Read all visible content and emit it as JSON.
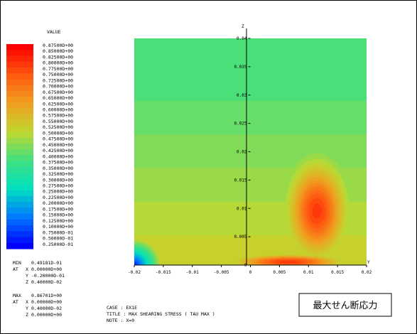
{
  "chart_data": {
    "type": "heatmap",
    "title": "MAX SHEARING STRESS ( TAU MAX )",
    "xlabel": "Y",
    "ylabel": "Z",
    "xlim": [
      -0.02,
      0.02
    ],
    "ylim": [
      0,
      0.04
    ],
    "x_ticks": [
      "-0.02",
      "-0.015",
      "-0.01",
      "-0.005",
      "0",
      "0.005",
      "0.01",
      "0.015",
      "0.02"
    ],
    "y_ticks": [
      "0",
      "0.005",
      "0.01",
      "0.015",
      "0.02",
      "0.025",
      "0.03",
      "0.035",
      "0.04"
    ],
    "colorbar": {
      "title": "VALUE",
      "labels": [
        "0.87500D+00",
        "0.85000D+00",
        "0.82500D+00",
        "0.80000D+00",
        "0.77500D+00",
        "0.75000D+00",
        "0.72500D+00",
        "0.70000D+00",
        "0.67500D+00",
        "0.65000D+00",
        "0.62500D+00",
        "0.60000D+00",
        "0.57500D+00",
        "0.55000D+00",
        "0.52500D+00",
        "0.50000D+00",
        "0.47500D+00",
        "0.45000D+00",
        "0.42500D+00",
        "0.40000D+00",
        "0.37500D+00",
        "0.35000D+00",
        "0.32500D+00",
        "0.30000D+00",
        "0.27500D+00",
        "0.25000D+00",
        "0.22500D+00",
        "0.20000D+00",
        "0.17500D+00",
        "0.15000D+00",
        "0.12500D+00",
        "0.10000D+00",
        "0.75000D-01",
        "0.50000D-01",
        "0.25000D-01"
      ],
      "range": [
        0.025,
        0.875
      ],
      "colormap": [
        "#0000ff",
        "#0078ff",
        "#00e0c0",
        "#40e080",
        "#c0d830",
        "#f0a020",
        "#ff5a10",
        "#ff0000"
      ]
    },
    "field_model": {
      "background": 0.4,
      "peaks": [
        {
          "y": 0.0115,
          "z": 0.0095,
          "value": 0.8,
          "sy": 0.0045,
          "sz": 0.0075
        },
        {
          "y": 0.0065,
          "z": 0.0005,
          "value": 0.8,
          "sy": 0.0085,
          "sz": 0.0012
        }
      ],
      "wall_gradient": {
        "from_z": 0.032,
        "increase_per_unit_z": 4.2,
        "max_value": 0.52
      },
      "corner_low": {
        "y": -0.02,
        "z": 0.0,
        "value": 0.05,
        "radius": 0.0045
      }
    },
    "stats": {
      "min": {
        "label": "MIN",
        "value": "0.49181D-01",
        "at_label": "AT",
        "x": "0.00000D+00",
        "y": "-0.20000D-01",
        "z": "0.40000D-02"
      },
      "max": {
        "label": "MAX",
        "value": "0.86701D+00",
        "at_label": "AT",
        "x": "0.00000D+00",
        "y": "0.40000D-02",
        "z": "0.00000D+00"
      }
    },
    "case_info": {
      "case": "CASE  : EX1E",
      "title": "TITLE : MAX SHEARING STRESS ( TAU MAX )",
      "note": "NOTE  : X=0"
    },
    "annotation": "最大せん断応力"
  }
}
